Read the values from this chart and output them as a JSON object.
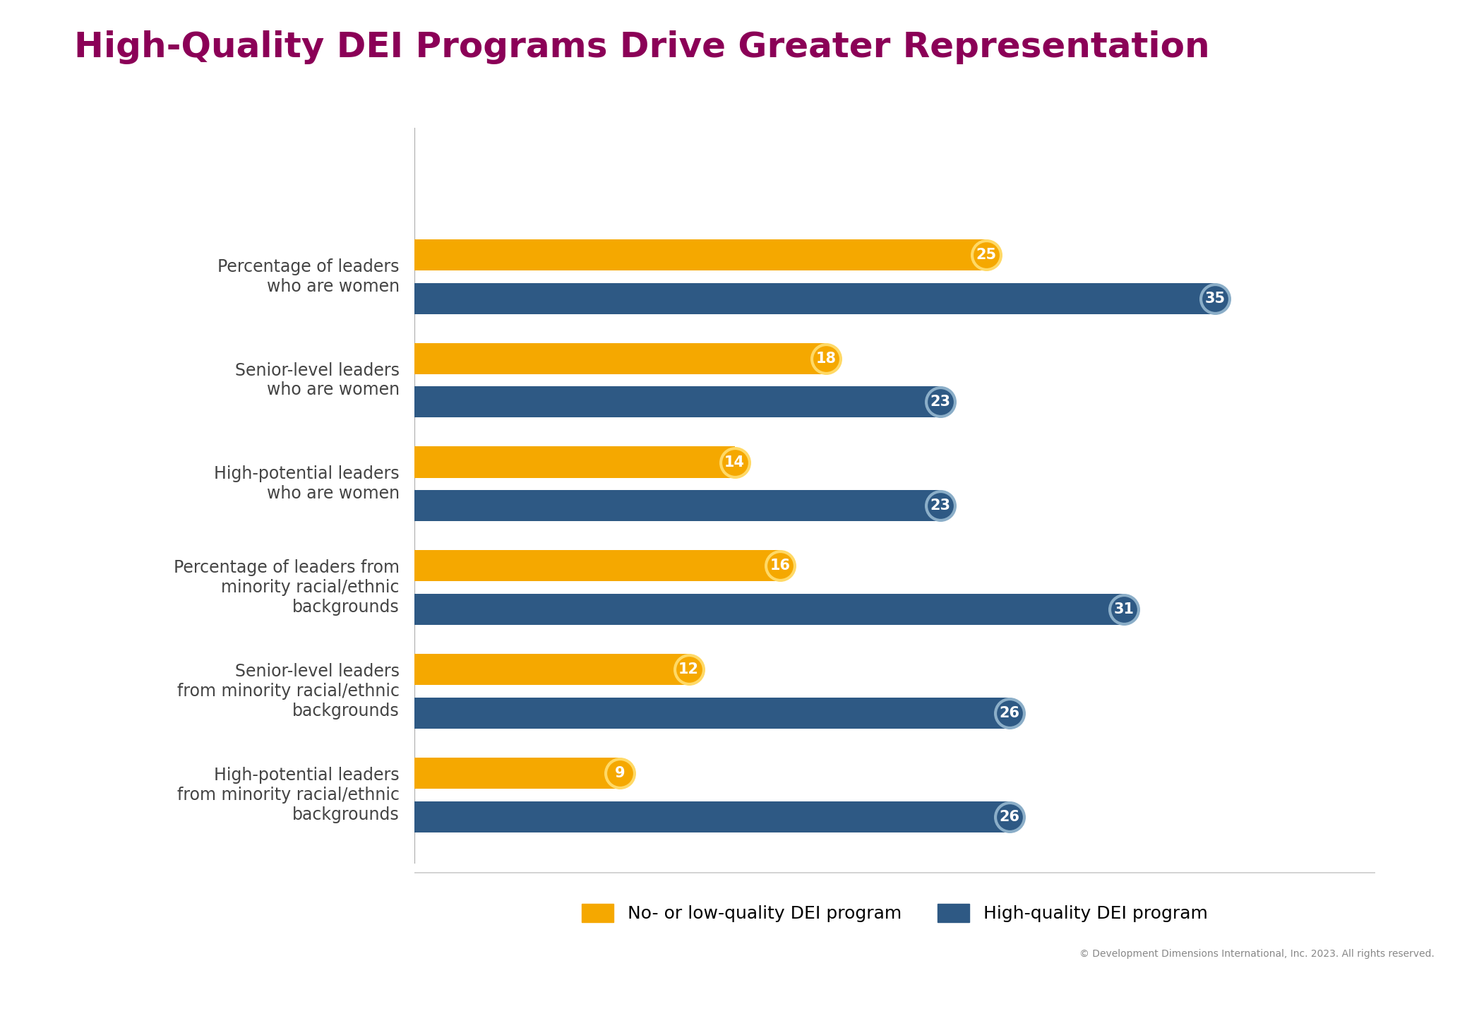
{
  "title": "High-Quality DEI Programs Drive Greater Representation",
  "title_color": "#8B0057",
  "title_fontsize": 36,
  "background_color": "#FFFFFF",
  "categories": [
    "Percentage of leaders\nwho are women",
    "Senior-level leaders\nwho are women",
    "High-potential leaders\nwho are women",
    "Percentage of leaders from\nminority racial/ethnic\nbackgrounds",
    "Senior-level leaders\nfrom minority racial/ethnic\nbackgrounds",
    "High-potential leaders\nfrom minority racial/ethnic\nbackgrounds"
  ],
  "low_values": [
    25,
    18,
    14,
    16,
    12,
    9
  ],
  "high_values": [
    35,
    23,
    23,
    31,
    26,
    26
  ],
  "low_color": "#F5A800",
  "high_color": "#2E5984",
  "low_ring_color": "#FFD966",
  "high_ring_color": "#8BAEC8",
  "bar_height": 0.3,
  "bar_sep": 0.42,
  "xlim": [
    0,
    42
  ],
  "ylim": [
    -0.8,
    6.5
  ],
  "legend_low_label": "No- or low-quality DEI program",
  "legend_high_label": "High-quality DEI program",
  "copyright": "© Development Dimensions International, Inc. 2023. All rights reserved.",
  "label_fontsize": 17,
  "value_fontsize": 15,
  "circle_size": 700
}
